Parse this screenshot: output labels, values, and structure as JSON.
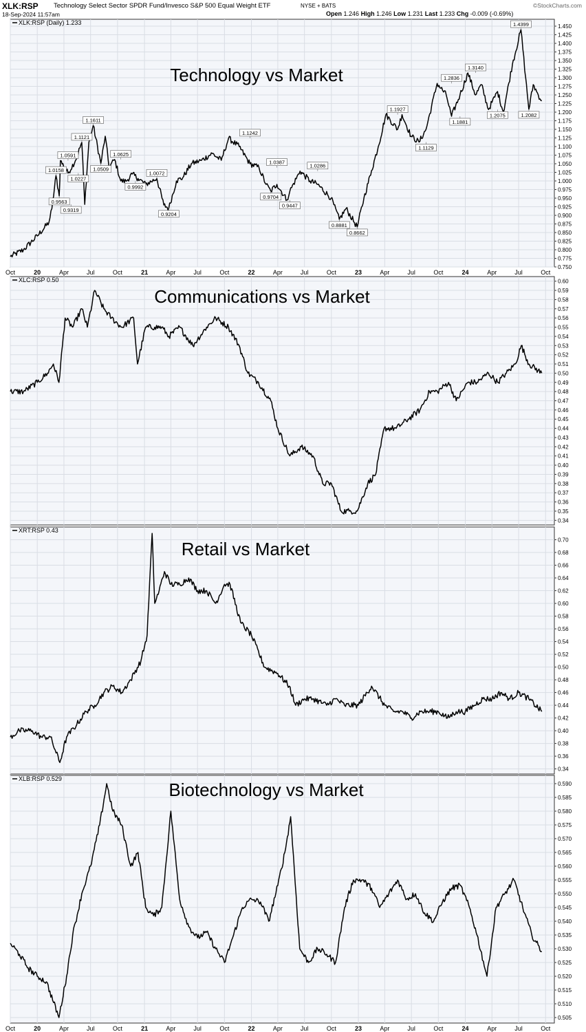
{
  "header": {
    "symbol": "XLK:RSP",
    "name": "Technology Select Sector SPDR Fund/Invesco S&P 500 Equal Weight ETF",
    "exchange": "NYSE + BATS",
    "datetime": "18-Sep-2024 11:57am",
    "brand": "©StockCharts.com",
    "open_label": "Open",
    "open": "1.246",
    "high_label": "High",
    "high": "1.246",
    "low_label": "Low",
    "low": "1.231",
    "last_label": "Last",
    "last": "1.233",
    "chg_label": "Chg",
    "chg": "-0.009 (-0.69%)"
  },
  "x_axis": {
    "start": "2019-10-01",
    "end": "2024-10-31",
    "ticks": [
      {
        "date": "2019-10-01",
        "label": "Oct",
        "bold": false
      },
      {
        "date": "2020-01-01",
        "label": "20",
        "bold": true
      },
      {
        "date": "2020-04-01",
        "label": "Apr",
        "bold": false
      },
      {
        "date": "2020-07-01",
        "label": "Jul",
        "bold": false
      },
      {
        "date": "2020-10-01",
        "label": "Oct",
        "bold": false
      },
      {
        "date": "2021-01-01",
        "label": "21",
        "bold": true
      },
      {
        "date": "2021-04-01",
        "label": "Apr",
        "bold": false
      },
      {
        "date": "2021-07-01",
        "label": "Jul",
        "bold": false
      },
      {
        "date": "2021-10-01",
        "label": "Oct",
        "bold": false
      },
      {
        "date": "2022-01-01",
        "label": "22",
        "bold": true
      },
      {
        "date": "2022-04-01",
        "label": "Apr",
        "bold": false
      },
      {
        "date": "2022-07-01",
        "label": "Jul",
        "bold": false
      },
      {
        "date": "2022-10-01",
        "label": "Oct",
        "bold": false
      },
      {
        "date": "2023-01-01",
        "label": "23",
        "bold": true
      },
      {
        "date": "2023-04-01",
        "label": "Apr",
        "bold": false
      },
      {
        "date": "2023-07-01",
        "label": "Jul",
        "bold": false
      },
      {
        "date": "2023-10-01",
        "label": "Oct",
        "bold": false
      },
      {
        "date": "2024-01-01",
        "label": "24",
        "bold": true
      },
      {
        "date": "2024-04-01",
        "label": "Apr",
        "bold": false
      },
      {
        "date": "2024-07-01",
        "label": "Jul",
        "bold": false
      },
      {
        "date": "2024-10-01",
        "label": "Oct",
        "bold": false
      }
    ]
  },
  "chart_data": [
    {
      "type": "line",
      "legend": "XLK:RSP (Daily) 1.233",
      "title": "Technology vs Market",
      "ylim": [
        0.75,
        1.47
      ],
      "yticks": [
        0.75,
        0.775,
        0.8,
        0.825,
        0.85,
        0.875,
        0.9,
        0.925,
        0.95,
        0.975,
        1.0,
        1.025,
        1.05,
        1.075,
        1.1,
        1.125,
        1.15,
        1.175,
        1.2,
        1.225,
        1.25,
        1.275,
        1.3,
        1.325,
        1.35,
        1.375,
        1.4,
        1.425,
        1.45
      ],
      "ytick_decimals": 3,
      "x": [
        "2019-10-01",
        "2019-11-15",
        "2020-01-01",
        "2020-02-10",
        "2020-02-20",
        "2020-03-05",
        "2020-03-16",
        "2020-03-20",
        "2020-04-15",
        "2020-05-10",
        "2020-06-01",
        "2020-06-11",
        "2020-06-25",
        "2020-07-10",
        "2020-08-05",
        "2020-08-20",
        "2020-09-02",
        "2020-09-21",
        "2020-10-12",
        "2020-10-30",
        "2020-11-20",
        "2020-12-10",
        "2021-01-05",
        "2021-02-12",
        "2021-03-08",
        "2021-03-25",
        "2021-04-20",
        "2021-05-12",
        "2021-06-10",
        "2021-07-15",
        "2021-08-20",
        "2021-09-20",
        "2021-10-15",
        "2021-11-20",
        "2021-12-27",
        "2022-01-27",
        "2022-02-20",
        "2022-03-08",
        "2022-03-29",
        "2022-05-02",
        "2022-05-12",
        "2022-06-16",
        "2022-07-20",
        "2022-08-15",
        "2022-09-30",
        "2022-10-28",
        "2022-11-20",
        "2022-12-28",
        "2023-01-20",
        "2023-02-15",
        "2023-03-10",
        "2023-04-05",
        "2023-05-15",
        "2023-05-30",
        "2023-06-30",
        "2023-07-27",
        "2023-08-20",
        "2023-09-27",
        "2023-10-28",
        "2023-11-15",
        "2023-12-14",
        "2024-01-10",
        "2024-02-05",
        "2024-02-25",
        "2024-03-20",
        "2024-04-20",
        "2024-05-10",
        "2024-06-10",
        "2024-07-09",
        "2024-07-25",
        "2024-08-05",
        "2024-08-20",
        "2024-09-06",
        "2024-09-18"
      ],
      "y": [
        0.78,
        0.8,
        0.84,
        0.88,
        0.92,
        1.0158,
        0.9563,
        1.0591,
        1.0227,
        1.0591,
        1.1121,
        0.9319,
        1.1121,
        1.1611,
        1.0509,
        1.13,
        1.04,
        1.0625,
        1.0,
        0.9992,
        1.02,
        1.0072,
        0.99,
        1.0072,
        0.93,
        0.9204,
        1.0,
        1.01,
        1.05,
        1.06,
        1.08,
        1.06,
        1.1242,
        1.1,
        1.05,
        1.0387,
        0.99,
        0.9704,
        0.99,
        0.9447,
        0.97,
        1.0286,
        1.0,
        0.99,
        0.95,
        0.8881,
        0.92,
        0.8662,
        0.95,
        1.03,
        1.1,
        1.1927,
        1.15,
        1.1927,
        1.13,
        1.1129,
        1.15,
        1.2836,
        1.25,
        1.1881,
        1.25,
        1.314,
        1.25,
        1.28,
        1.2075,
        1.26,
        1.2,
        1.34,
        1.4399,
        1.3,
        1.2082,
        1.28,
        1.25,
        1.233
      ],
      "point_labels": [
        {
          "date": "2020-03-05",
          "value": 1.0158,
          "text": "1.0158",
          "pos": "above"
        },
        {
          "date": "2020-03-16",
          "value": 0.9563,
          "text": "0.9563",
          "pos": "below"
        },
        {
          "date": "2020-04-15",
          "value": 1.0591,
          "text": "1.0591",
          "pos": "above"
        },
        {
          "date": "2020-05-20",
          "value": 1.0227,
          "text": "1.0227",
          "pos": "below"
        },
        {
          "date": "2020-06-01",
          "value": 1.1121,
          "text": "1.1121",
          "pos": "above"
        },
        {
          "date": "2020-04-25",
          "value": 0.9319,
          "text": "0.9319",
          "pos": "below"
        },
        {
          "date": "2020-07-10",
          "value": 1.1611,
          "text": "1.1611",
          "pos": "above"
        },
        {
          "date": "2020-08-05",
          "value": 1.0509,
          "text": "1.0509",
          "pos": "below"
        },
        {
          "date": "2020-10-12",
          "value": 1.0625,
          "text": "1.0625",
          "pos": "above"
        },
        {
          "date": "2020-12-01",
          "value": 0.9992,
          "text": "0.9992",
          "pos": "below"
        },
        {
          "date": "2021-02-12",
          "value": 1.0072,
          "text": "1.0072",
          "pos": "above"
        },
        {
          "date": "2021-03-25",
          "value": 0.9204,
          "text": "0.9204",
          "pos": "below"
        },
        {
          "date": "2021-12-27",
          "value": 1.1242,
          "text": "1.1242",
          "pos": "above"
        },
        {
          "date": "2022-03-29",
          "value": 1.0387,
          "text": "1.0387",
          "pos": "above"
        },
        {
          "date": "2022-03-08",
          "value": 0.9704,
          "text": "0.9704",
          "pos": "below"
        },
        {
          "date": "2022-05-12",
          "value": 0.9447,
          "text": "0.9447",
          "pos": "below"
        },
        {
          "date": "2022-08-15",
          "value": 1.0286,
          "text": "1.0286",
          "pos": "above"
        },
        {
          "date": "2022-10-28",
          "value": 0.8881,
          "text": "0.8881",
          "pos": "below"
        },
        {
          "date": "2022-12-28",
          "value": 0.8662,
          "text": "0.8662",
          "pos": "below"
        },
        {
          "date": "2023-05-15",
          "value": 1.1927,
          "text": "1.1927",
          "pos": "above"
        },
        {
          "date": "2023-08-20",
          "value": 1.1129,
          "text": "1.1129",
          "pos": "below"
        },
        {
          "date": "2023-11-15",
          "value": 1.2836,
          "text": "1.2836",
          "pos": "above"
        },
        {
          "date": "2023-12-14",
          "value": 1.1881,
          "text": "1.1881",
          "pos": "below"
        },
        {
          "date": "2024-02-05",
          "value": 1.314,
          "text": "1.3140",
          "pos": "above"
        },
        {
          "date": "2024-04-20",
          "value": 1.2075,
          "text": "1.2075",
          "pos": "below"
        },
        {
          "date": "2024-07-09",
          "value": 1.4399,
          "text": "1.4399",
          "pos": "above"
        },
        {
          "date": "2024-08-05",
          "value": 1.2082,
          "text": "1.2082",
          "pos": "below"
        }
      ]
    },
    {
      "type": "line",
      "legend": "XLC:RSP 0.50",
      "title": "Communications vs Market",
      "ylim": [
        0.335,
        0.605
      ],
      "yticks": [
        0.34,
        0.35,
        0.36,
        0.37,
        0.38,
        0.39,
        0.4,
        0.41,
        0.42,
        0.43,
        0.44,
        0.45,
        0.46,
        0.47,
        0.48,
        0.49,
        0.5,
        0.51,
        0.52,
        0.53,
        0.54,
        0.55,
        0.56,
        0.57,
        0.58,
        0.59,
        0.6
      ],
      "ytick_decimals": 2,
      "x": [
        "2019-10-01",
        "2019-11-15",
        "2020-01-01",
        "2020-02-05",
        "2020-02-25",
        "2020-03-15",
        "2020-04-05",
        "2020-05-01",
        "2020-06-01",
        "2020-06-20",
        "2020-07-15",
        "2020-08-15",
        "2020-09-10",
        "2020-10-15",
        "2020-11-25",
        "2020-12-08",
        "2021-01-05",
        "2021-02-05",
        "2021-03-01",
        "2021-03-25",
        "2021-05-01",
        "2021-06-15",
        "2021-08-01",
        "2021-09-01",
        "2021-10-15",
        "2021-11-20",
        "2021-12-20",
        "2022-01-25",
        "2022-03-08",
        "2022-04-01",
        "2022-05-12",
        "2022-06-20",
        "2022-07-30",
        "2022-09-01",
        "2022-10-01",
        "2022-11-03",
        "2022-12-01",
        "2022-12-28",
        "2023-02-02",
        "2023-03-01",
        "2023-03-30",
        "2023-05-10",
        "2023-06-20",
        "2023-07-30",
        "2023-09-01",
        "2023-09-28",
        "2023-11-05",
        "2023-12-01",
        "2024-01-10",
        "2024-02-10",
        "2024-03-20",
        "2024-04-20",
        "2024-05-20",
        "2024-06-20",
        "2024-07-10",
        "2024-08-05",
        "2024-09-18"
      ],
      "y": [
        0.48,
        0.48,
        0.49,
        0.5,
        0.51,
        0.49,
        0.56,
        0.55,
        0.57,
        0.55,
        0.59,
        0.57,
        0.56,
        0.55,
        0.56,
        0.51,
        0.55,
        0.55,
        0.55,
        0.54,
        0.55,
        0.53,
        0.55,
        0.56,
        0.55,
        0.53,
        0.5,
        0.49,
        0.47,
        0.44,
        0.41,
        0.42,
        0.41,
        0.38,
        0.38,
        0.35,
        0.35,
        0.35,
        0.38,
        0.39,
        0.44,
        0.44,
        0.45,
        0.46,
        0.48,
        0.48,
        0.49,
        0.47,
        0.49,
        0.49,
        0.5,
        0.49,
        0.5,
        0.51,
        0.53,
        0.51,
        0.5
      ]
    },
    {
      "type": "line",
      "legend": "XRT:RSP 0.43",
      "title": "Retail vs Market",
      "ylim": [
        0.332,
        0.72
      ],
      "yticks": [
        0.34,
        0.36,
        0.38,
        0.4,
        0.42,
        0.44,
        0.46,
        0.48,
        0.5,
        0.52,
        0.54,
        0.56,
        0.58,
        0.6,
        0.62,
        0.64,
        0.66,
        0.68,
        0.7
      ],
      "ytick_decimals": 2,
      "x": [
        "2019-10-01",
        "2019-11-01",
        "2019-12-15",
        "2020-01-15",
        "2020-02-15",
        "2020-03-18",
        "2020-04-10",
        "2020-05-15",
        "2020-06-15",
        "2020-07-15",
        "2020-08-15",
        "2020-09-15",
        "2020-10-15",
        "2020-11-15",
        "2020-12-20",
        "2021-01-10",
        "2021-01-27",
        "2021-02-05",
        "2021-02-20",
        "2021-03-10",
        "2021-04-01",
        "2021-05-01",
        "2021-06-01",
        "2021-07-01",
        "2021-08-01",
        "2021-09-01",
        "2021-10-01",
        "2021-10-20",
        "2021-11-25",
        "2022-01-01",
        "2022-02-15",
        "2022-04-01",
        "2022-05-10",
        "2022-06-01",
        "2022-07-01",
        "2022-08-01",
        "2022-09-15",
        "2022-10-15",
        "2022-11-15",
        "2023-01-01",
        "2023-02-15",
        "2023-04-01",
        "2023-05-01",
        "2023-06-01",
        "2023-07-01",
        "2023-08-01",
        "2023-09-01",
        "2023-10-01",
        "2023-11-01",
        "2023-12-01",
        "2024-01-01",
        "2024-02-01",
        "2024-03-01",
        "2024-04-01",
        "2024-05-01",
        "2024-06-01",
        "2024-07-01",
        "2024-08-05",
        "2024-09-18"
      ],
      "y": [
        0.39,
        0.4,
        0.4,
        0.39,
        0.39,
        0.35,
        0.39,
        0.41,
        0.43,
        0.44,
        0.46,
        0.47,
        0.46,
        0.48,
        0.51,
        0.55,
        0.71,
        0.6,
        0.62,
        0.65,
        0.63,
        0.63,
        0.64,
        0.62,
        0.62,
        0.6,
        0.63,
        0.63,
        0.57,
        0.55,
        0.5,
        0.49,
        0.47,
        0.44,
        0.45,
        0.45,
        0.44,
        0.45,
        0.44,
        0.44,
        0.47,
        0.44,
        0.43,
        0.43,
        0.42,
        0.43,
        0.43,
        0.43,
        0.42,
        0.43,
        0.43,
        0.44,
        0.45,
        0.45,
        0.46,
        0.45,
        0.46,
        0.45,
        0.43
      ]
    },
    {
      "type": "line",
      "legend": "XLB:RSP 0.529",
      "title": "Biotechnology vs Market",
      "ylim": [
        0.503,
        0.593
      ],
      "yticks": [
        0.505,
        0.51,
        0.515,
        0.52,
        0.525,
        0.53,
        0.535,
        0.54,
        0.545,
        0.55,
        0.555,
        0.56,
        0.565,
        0.57,
        0.575,
        0.58,
        0.585,
        0.59
      ],
      "ytick_decimals": 3,
      "x": [
        "2019-10-01",
        "2019-11-01",
        "2019-12-01",
        "2020-01-01",
        "2020-02-01",
        "2020-03-15",
        "2020-04-10",
        "2020-05-01",
        "2020-06-01",
        "2020-07-01",
        "2020-08-01",
        "2020-08-25",
        "2020-09-15",
        "2020-10-15",
        "2020-11-15",
        "2020-12-10",
        "2021-01-05",
        "2021-02-01",
        "2021-03-01",
        "2021-04-01",
        "2021-05-01",
        "2021-06-01",
        "2021-07-01",
        "2021-08-01",
        "2021-09-01",
        "2021-10-01",
        "2021-11-01",
        "2021-12-01",
        "2022-01-01",
        "2022-02-01",
        "2022-03-01",
        "2022-04-01",
        "2022-04-25",
        "2022-05-15",
        "2022-06-15",
        "2022-07-15",
        "2022-08-15",
        "2022-09-15",
        "2022-10-15",
        "2022-11-15",
        "2022-12-15",
        "2023-01-15",
        "2023-02-15",
        "2023-03-15",
        "2023-04-15",
        "2023-05-15",
        "2023-06-15",
        "2023-07-15",
        "2023-08-15",
        "2023-09-15",
        "2023-10-15",
        "2023-11-15",
        "2023-12-15",
        "2024-01-15",
        "2024-02-10",
        "2024-03-15",
        "2024-04-15",
        "2024-05-15",
        "2024-06-15",
        "2024-07-15",
        "2024-08-15",
        "2024-09-18"
      ],
      "y": [
        0.532,
        0.528,
        0.523,
        0.52,
        0.518,
        0.505,
        0.52,
        0.535,
        0.55,
        0.56,
        0.575,
        0.59,
        0.58,
        0.575,
        0.56,
        0.565,
        0.545,
        0.542,
        0.545,
        0.58,
        0.548,
        0.538,
        0.534,
        0.536,
        0.53,
        0.525,
        0.535,
        0.545,
        0.548,
        0.547,
        0.54,
        0.553,
        0.565,
        0.578,
        0.53,
        0.525,
        0.53,
        0.528,
        0.525,
        0.545,
        0.555,
        0.555,
        0.552,
        0.545,
        0.55,
        0.555,
        0.548,
        0.55,
        0.543,
        0.54,
        0.547,
        0.552,
        0.553,
        0.545,
        0.535,
        0.52,
        0.545,
        0.55,
        0.555,
        0.545,
        0.535,
        0.529
      ]
    }
  ]
}
